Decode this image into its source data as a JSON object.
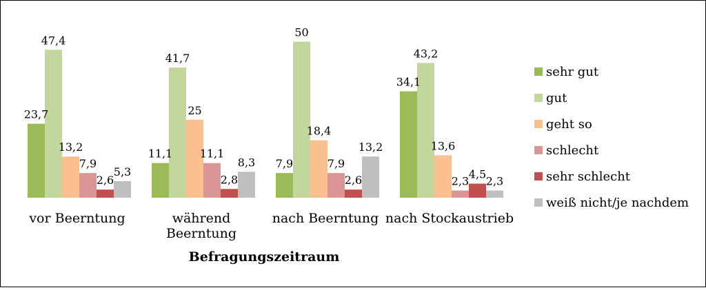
{
  "chart_data": {
    "type": "bar",
    "xlabel": "Befragungszeitraum",
    "ylabel": "",
    "ylim": [
      0,
      52
    ],
    "grid": false,
    "legend_position": "right",
    "categories": [
      "vor Beerntung",
      "während Beerntung",
      "nach Beerntung",
      "nach Stockaustrieb"
    ],
    "category_lines": [
      [
        "vor Beerntung"
      ],
      [
        "während",
        "Beerntung"
      ],
      [
        "nach Beerntung"
      ],
      [
        "nach Stockaustrieb"
      ]
    ],
    "series": [
      {
        "name": "sehr gut",
        "color": "#9BBB59",
        "values": [
          23.7,
          11.1,
          7.9,
          34.1
        ],
        "labels": [
          "23,7",
          "11,1",
          "7,9",
          "34,1"
        ]
      },
      {
        "name": "gut",
        "color": "#C3D69B",
        "values": [
          47.4,
          41.7,
          50,
          43.2
        ],
        "labels": [
          "47,4",
          "41,7",
          "50",
          "43,2"
        ]
      },
      {
        "name": "geht so",
        "color": "#FAC090",
        "values": [
          13.2,
          25,
          18.4,
          13.6
        ],
        "labels": [
          "13,2",
          "25",
          "18,4",
          "13,6"
        ]
      },
      {
        "name": "schlecht",
        "color": "#D99694",
        "values": [
          7.9,
          11.1,
          7.9,
          2.3
        ],
        "labels": [
          "7,9",
          "11,1",
          "7,9",
          "2,3"
        ]
      },
      {
        "name": "sehr schlecht",
        "color": "#C0504D",
        "values": [
          2.6,
          2.8,
          2.6,
          4.5
        ],
        "labels": [
          "2,6",
          "2,8",
          "2,6",
          "4,5"
        ]
      },
      {
        "name": "weiß nicht/je nachdem",
        "color": "#BFBFBF",
        "values": [
          5.3,
          8.3,
          13.2,
          2.3
        ],
        "labels": [
          "5,3",
          "8,3",
          "13,2",
          "2,3"
        ]
      }
    ]
  }
}
